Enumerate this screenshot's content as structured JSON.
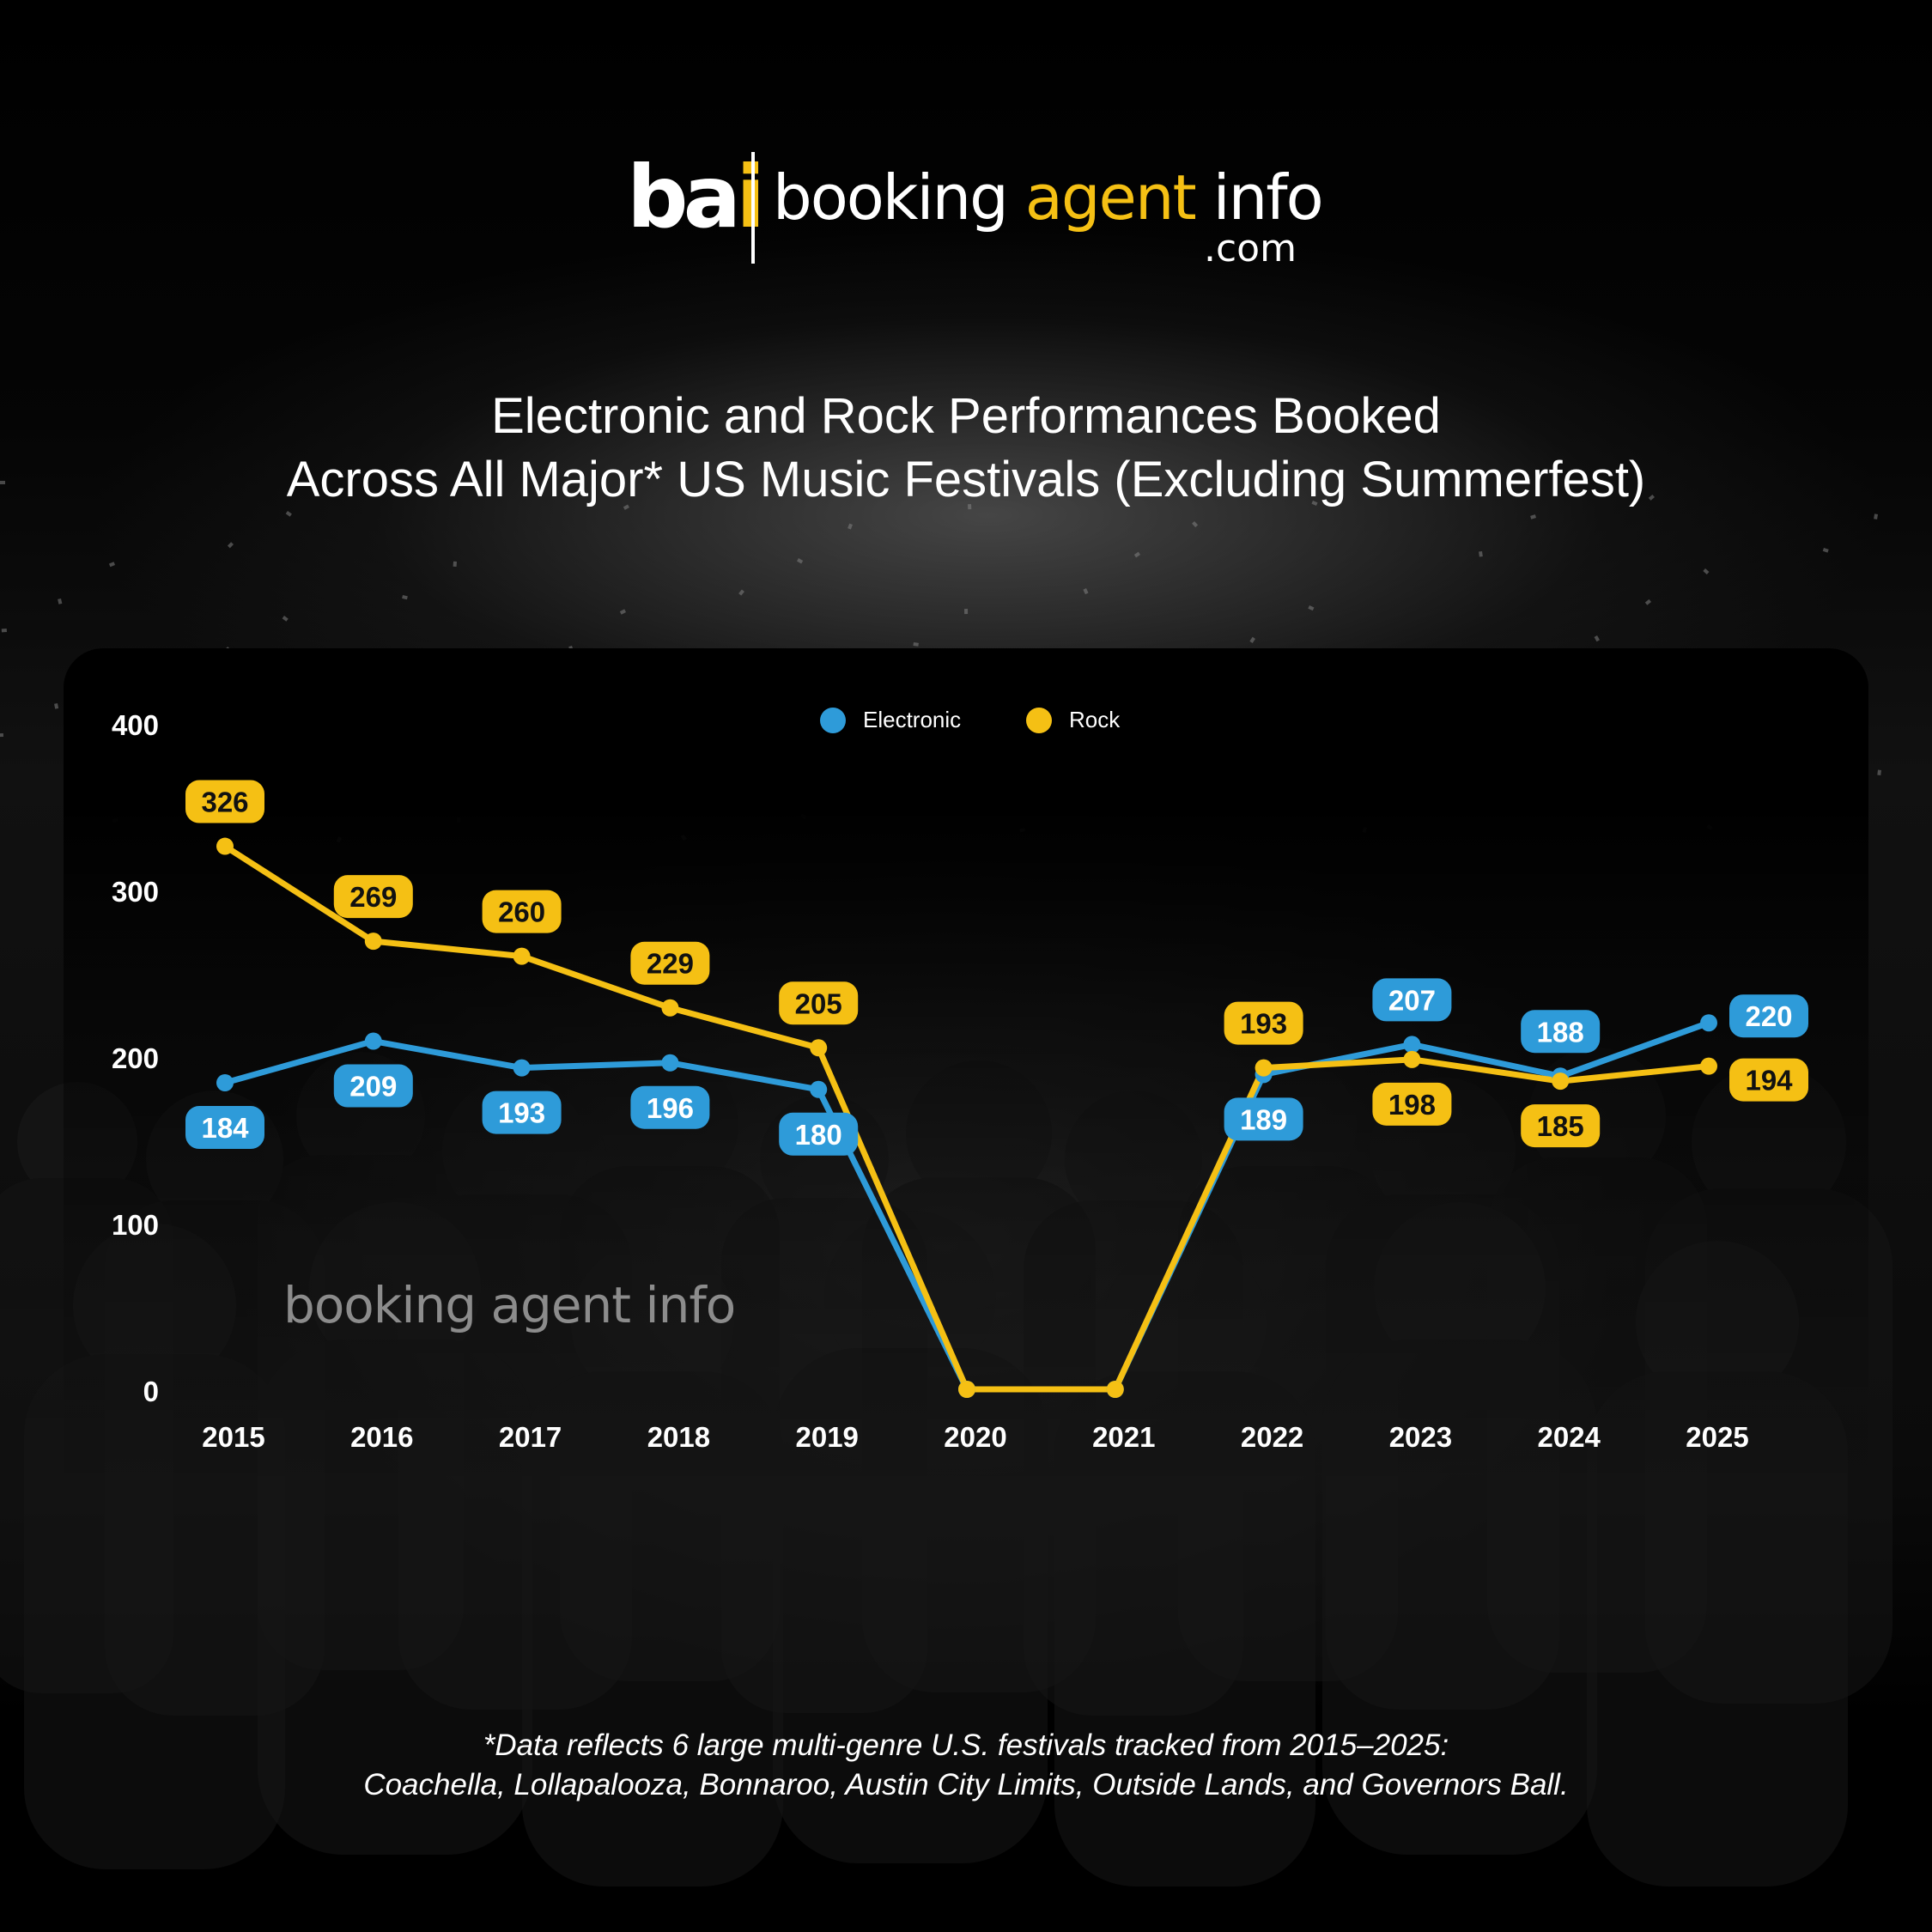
{
  "brand": {
    "mark_b": "b",
    "mark_a": "a",
    "mark_i": "i",
    "name_booking": "booking",
    "name_agent": "agent",
    "name_info": "info",
    "domain": ".com",
    "watermark": "booking agent info"
  },
  "title_lines": [
    "Electronic and Rock Performances Booked",
    "Across All Major* US Music Festivals (Excluding Summerfest)"
  ],
  "footnote_lines": [
    "*Data reflects 6 large multi-genre U.S. festivals tracked from 2015–2025:",
    "Coachella, Lollapalooza, Bonnaroo, Austin City Limits, Outside Lands, and Governors Ball."
  ],
  "colors": {
    "electronic": "#2e9bd9",
    "rock": "#f5c014",
    "background": "#000000"
  },
  "chart_data": {
    "type": "line",
    "title": "Electronic and Rock Performances Booked Across All Major* US Music Festivals (Excluding Summerfest)",
    "xlabel": "",
    "ylabel": "",
    "categories": [
      "2015",
      "2016",
      "2017",
      "2018",
      "2019",
      "2020",
      "2021",
      "2022",
      "2023",
      "2024",
      "2025"
    ],
    "ylim": [
      0,
      400
    ],
    "yticks": [
      0,
      100,
      200,
      300,
      400
    ],
    "grid": false,
    "legend_position": "top-center",
    "series": [
      {
        "name": "Electronic",
        "color": "#2e9bd9",
        "values": [
          184,
          209,
          193,
          196,
          180,
          0,
          0,
          189,
          207,
          188,
          220
        ],
        "labels": [
          "184",
          "209",
          "193",
          "196",
          "180",
          null,
          null,
          "189",
          "207",
          "188",
          "220"
        ]
      },
      {
        "name": "Rock",
        "color": "#f5c014",
        "values": [
          326,
          269,
          260,
          229,
          205,
          0,
          0,
          193,
          198,
          185,
          194
        ],
        "labels": [
          "326",
          "269",
          "260",
          "229",
          "205",
          null,
          null,
          "193",
          "198",
          "185",
          "194"
        ]
      }
    ]
  }
}
